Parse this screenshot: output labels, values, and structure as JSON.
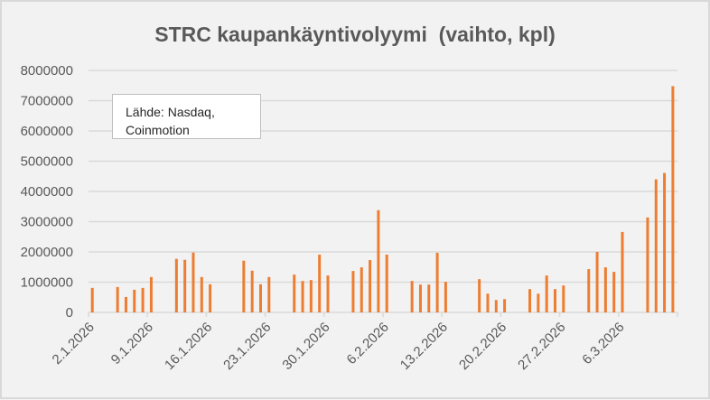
{
  "chart_data": {
    "type": "bar",
    "title": "STRC kaupankäyntivolyymi  (vaihto, kpl)",
    "xlabel": "",
    "ylabel": "",
    "ylim": [
      0,
      8000000
    ],
    "yticks": [
      "0",
      "1000000",
      "2000000",
      "3000000",
      "4000000",
      "5000000",
      "6000000",
      "7000000",
      "8000000"
    ],
    "xlim": [
      "2.1.2026",
      "13.3.2026"
    ],
    "xticks": [
      "2.1.2026",
      "9.1.2026",
      "16.1.2026",
      "23.1.2026",
      "30.1.2026",
      "6.2.2026",
      "13.2.2026",
      "20.2.2026",
      "27.2.2026",
      "6.3.2026"
    ],
    "grid": true,
    "bar_color": "#ED7D31",
    "annotation": "Lähde: Nasdaq, Coinmotion",
    "x": [
      "2.1.2026",
      "5.1.2026",
      "6.1.2026",
      "7.1.2026",
      "8.1.2026",
      "9.1.2026",
      "12.1.2026",
      "13.1.2026",
      "14.1.2026",
      "15.1.2026",
      "16.1.2026",
      "20.1.2026",
      "21.1.2026",
      "22.1.2026",
      "23.1.2026",
      "26.1.2026",
      "27.1.2026",
      "28.1.2026",
      "29.1.2026",
      "30.1.2026",
      "2.2.2026",
      "3.2.2026",
      "4.2.2026",
      "5.2.2026",
      "6.2.2026",
      "9.2.2026",
      "10.2.2026",
      "11.2.2026",
      "12.2.2026",
      "13.2.2026",
      "17.2.2026",
      "18.2.2026",
      "19.2.2026",
      "20.2.2026",
      "23.2.2026",
      "24.2.2026",
      "25.2.2026",
      "26.2.2026",
      "27.2.2026",
      "2.3.2026",
      "3.3.2026",
      "4.3.2026",
      "5.3.2026",
      "6.3.2026",
      "9.3.2026",
      "10.3.2026",
      "11.3.2026",
      "12.3.2026"
    ],
    "values": [
      810000,
      840000,
      510000,
      750000,
      810000,
      1170000,
      1770000,
      1740000,
      1980000,
      1170000,
      930000,
      1710000,
      1380000,
      930000,
      1170000,
      1250000,
      1040000,
      1070000,
      1910000,
      1220000,
      1370000,
      1490000,
      1730000,
      3380000,
      1910000,
      1040000,
      920000,
      920000,
      1970000,
      1010000,
      1100000,
      620000,
      410000,
      440000,
      770000,
      620000,
      1220000,
      770000,
      890000,
      1430000,
      2000000,
      1490000,
      1340000,
      2660000,
      3140000,
      4400000,
      4610000,
      7480000
    ]
  }
}
